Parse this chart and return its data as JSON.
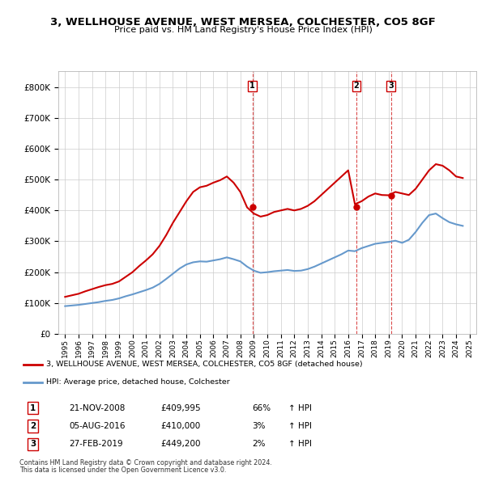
{
  "title": "3, WELLHOUSE AVENUE, WEST MERSEA, COLCHESTER, CO5 8GF",
  "subtitle": "Price paid vs. HM Land Registry's House Price Index (HPI)",
  "legend_red": "3, WELLHOUSE AVENUE, WEST MERSEA, COLCHESTER, CO5 8GF (detached house)",
  "legend_blue": "HPI: Average price, detached house, Colchester",
  "transactions": [
    {
      "num": 1,
      "date": "21-NOV-2008",
      "price": 409995,
      "pct": "66%",
      "dir": "↑"
    },
    {
      "num": 2,
      "date": "05-AUG-2016",
      "price": 410000,
      "pct": "3%",
      "dir": "↑"
    },
    {
      "num": 3,
      "date": "27-FEB-2019",
      "price": 449200,
      "pct": "2%",
      "dir": "↑"
    }
  ],
  "footer1": "Contains HM Land Registry data © Crown copyright and database right 2024.",
  "footer2": "This data is licensed under the Open Government Licence v3.0.",
  "red_color": "#cc0000",
  "blue_color": "#6699cc",
  "dashed_color": "#cc0000",
  "background_color": "#ffffff",
  "grid_color": "#cccccc",
  "ylim": [
    0,
    850000
  ],
  "yticks": [
    0,
    100000,
    200000,
    300000,
    400000,
    500000,
    600000,
    700000,
    800000
  ],
  "xlim_start": 1994.5,
  "xlim_end": 2025.5,
  "hpi_base_value": 100000,
  "red_data": {
    "years": [
      1995.0,
      1995.5,
      1996.0,
      1996.5,
      1997.0,
      1997.5,
      1998.0,
      1998.5,
      1999.0,
      1999.5,
      2000.0,
      2000.5,
      2001.0,
      2001.5,
      2002.0,
      2002.5,
      2003.0,
      2003.5,
      2004.0,
      2004.5,
      2005.0,
      2005.5,
      2006.0,
      2006.5,
      2007.0,
      2007.5,
      2008.0,
      2008.5,
      2009.0,
      2009.5,
      2010.0,
      2010.5,
      2011.0,
      2011.5,
      2012.0,
      2012.5,
      2013.0,
      2013.5,
      2014.0,
      2014.5,
      2015.0,
      2015.5,
      2016.0,
      2016.5,
      2017.0,
      2017.5,
      2018.0,
      2018.5,
      2019.0,
      2019.5,
      2020.0,
      2020.5,
      2021.0,
      2021.5,
      2022.0,
      2022.5,
      2023.0,
      2023.5,
      2024.0,
      2024.5
    ],
    "values": [
      120000,
      125000,
      130000,
      138000,
      145000,
      152000,
      158000,
      162000,
      170000,
      185000,
      200000,
      220000,
      238000,
      258000,
      285000,
      320000,
      360000,
      395000,
      430000,
      460000,
      475000,
      480000,
      490000,
      498000,
      510000,
      490000,
      460000,
      410000,
      390000,
      380000,
      385000,
      395000,
      400000,
      405000,
      400000,
      405000,
      415000,
      430000,
      450000,
      470000,
      490000,
      510000,
      530000,
      420000,
      430000,
      445000,
      455000,
      450000,
      449200,
      460000,
      455000,
      450000,
      470000,
      500000,
      530000,
      550000,
      545000,
      530000,
      510000,
      505000
    ]
  },
  "blue_data": {
    "years": [
      1995.0,
      1995.5,
      1996.0,
      1996.5,
      1997.0,
      1997.5,
      1998.0,
      1998.5,
      1999.0,
      1999.5,
      2000.0,
      2000.5,
      2001.0,
      2001.5,
      2002.0,
      2002.5,
      2003.0,
      2003.5,
      2004.0,
      2004.5,
      2005.0,
      2005.5,
      2006.0,
      2006.5,
      2007.0,
      2007.5,
      2008.0,
      2008.5,
      2009.0,
      2009.5,
      2010.0,
      2010.5,
      2011.0,
      2011.5,
      2012.0,
      2012.5,
      2013.0,
      2013.5,
      2014.0,
      2014.5,
      2015.0,
      2015.5,
      2016.0,
      2016.5,
      2017.0,
      2017.5,
      2018.0,
      2018.5,
      2019.0,
      2019.5,
      2020.0,
      2020.5,
      2021.0,
      2021.5,
      2022.0,
      2022.5,
      2023.0,
      2023.5,
      2024.0,
      2024.5
    ],
    "values": [
      90000,
      92000,
      94000,
      97000,
      100000,
      103000,
      107000,
      110000,
      115000,
      122000,
      128000,
      135000,
      142000,
      150000,
      162000,
      178000,
      195000,
      212000,
      225000,
      232000,
      235000,
      234000,
      238000,
      242000,
      248000,
      242000,
      235000,
      218000,
      205000,
      198000,
      200000,
      203000,
      205000,
      207000,
      204000,
      205000,
      210000,
      218000,
      228000,
      238000,
      248000,
      258000,
      270000,
      268000,
      278000,
      285000,
      292000,
      295000,
      298000,
      302000,
      295000,
      305000,
      330000,
      360000,
      385000,
      390000,
      375000,
      362000,
      355000,
      350000
    ]
  },
  "transaction_years": [
    2008.9,
    2016.6,
    2019.17
  ],
  "transaction_prices": [
    409995,
    410000,
    449200
  ]
}
